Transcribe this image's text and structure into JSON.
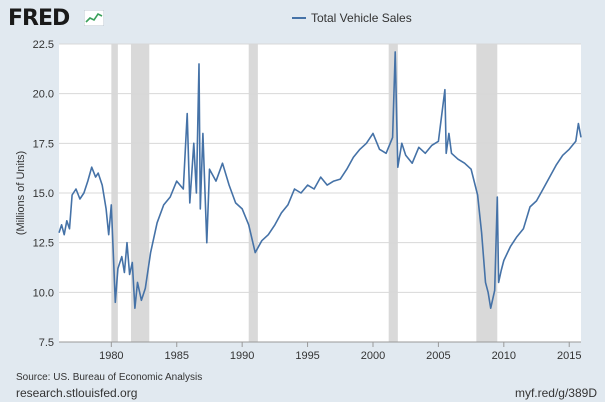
{
  "branding": {
    "logo_text": "FRED",
    "logo_icon": "chart-line-icon",
    "site": "research.stlouisfed.org",
    "short_url": "myf.red/g/389D",
    "source": "Source: US. Bureau of Economic Analysis"
  },
  "colors": {
    "line": "#4572a7",
    "recession": "#d9d9d9",
    "background": "#e1e9f0",
    "plot_bg": "#ffffff",
    "grid": "#d8d8d8"
  },
  "chart_data": {
    "type": "line",
    "title": "",
    "legend": [
      "Total Vehicle Sales"
    ],
    "legend_position": "top-center",
    "xlabel": "",
    "ylabel": "(Millions of Units)",
    "xlim": [
      1976.0,
      2015.9
    ],
    "ylim": [
      7.5,
      22.5
    ],
    "xticks": [
      1980,
      1985,
      1990,
      1995,
      2000,
      2005,
      2010,
      2015
    ],
    "yticks": [
      7.5,
      10.0,
      12.5,
      15.0,
      17.5,
      20.0,
      22.5
    ],
    "ytick_labels": [
      "7.5",
      "10.0",
      "12.5",
      "15.0",
      "17.5",
      "20.0",
      "22.5"
    ],
    "grid": "horizontal",
    "recessions": [
      [
        1980.0,
        1980.5
      ],
      [
        1981.5,
        1982.9
      ],
      [
        1990.5,
        1991.2
      ],
      [
        2001.2,
        2001.9
      ],
      [
        2007.9,
        2009.5
      ]
    ],
    "series": [
      {
        "name": "Total Vehicle Sales",
        "x": [
          1976.0,
          1976.2,
          1976.4,
          1976.6,
          1976.8,
          1977.0,
          1977.3,
          1977.6,
          1977.9,
          1978.2,
          1978.5,
          1978.8,
          1979.0,
          1979.3,
          1979.6,
          1979.8,
          1980.0,
          1980.3,
          1980.5,
          1980.8,
          1981.0,
          1981.2,
          1981.4,
          1981.6,
          1981.8,
          1982.0,
          1982.3,
          1982.6,
          1983.0,
          1983.5,
          1984.0,
          1984.5,
          1985.0,
          1985.5,
          1985.8,
          1986.0,
          1986.3,
          1986.5,
          1986.7,
          1986.8,
          1987.0,
          1987.3,
          1987.5,
          1988.0,
          1988.5,
          1989.0,
          1989.5,
          1990.0,
          1990.5,
          1991.0,
          1991.5,
          1992.0,
          1992.5,
          1993.0,
          1993.5,
          1994.0,
          1994.5,
          1995.0,
          1995.5,
          1996.0,
          1996.5,
          1997.0,
          1997.5,
          1998.0,
          1998.5,
          1999.0,
          1999.5,
          2000.0,
          2000.5,
          2001.0,
          2001.5,
          2001.7,
          2001.9,
          2002.2,
          2002.5,
          2003.0,
          2003.5,
          2004.0,
          2004.5,
          2005.0,
          2005.5,
          2005.6,
          2005.8,
          2006.0,
          2006.5,
          2007.0,
          2007.5,
          2008.0,
          2008.3,
          2008.6,
          2008.8,
          2009.0,
          2009.3,
          2009.5,
          2009.6,
          2009.8,
          2010.0,
          2010.5,
          2011.0,
          2011.5,
          2012.0,
          2012.5,
          2013.0,
          2013.5,
          2014.0,
          2014.5,
          2015.0,
          2015.5,
          2015.7,
          2015.9
        ],
        "values": [
          13.0,
          13.4,
          12.9,
          13.6,
          13.2,
          14.9,
          15.2,
          14.7,
          15.0,
          15.6,
          16.3,
          15.8,
          16.0,
          15.4,
          14.2,
          12.9,
          14.4,
          9.5,
          11.2,
          11.8,
          11.0,
          12.5,
          10.9,
          11.5,
          9.2,
          10.5,
          9.6,
          10.2,
          12.0,
          13.5,
          14.4,
          14.8,
          15.6,
          15.2,
          19.0,
          14.5,
          17.5,
          15.0,
          21.5,
          14.2,
          18.0,
          12.5,
          16.2,
          15.6,
          16.5,
          15.4,
          14.5,
          14.2,
          13.4,
          12.0,
          12.6,
          12.9,
          13.4,
          14.0,
          14.4,
          15.2,
          15.0,
          15.4,
          15.2,
          15.8,
          15.4,
          15.6,
          15.7,
          16.2,
          16.8,
          17.2,
          17.5,
          18.0,
          17.2,
          17.0,
          17.8,
          22.1,
          16.3,
          17.5,
          16.9,
          16.5,
          17.3,
          17.0,
          17.4,
          17.6,
          20.2,
          17.0,
          18.0,
          17.0,
          16.7,
          16.5,
          16.2,
          14.9,
          13.0,
          10.5,
          10.0,
          9.2,
          10.1,
          14.8,
          10.5,
          11.1,
          11.6,
          12.3,
          12.8,
          13.2,
          14.3,
          14.6,
          15.2,
          15.8,
          16.4,
          16.9,
          17.2,
          17.6,
          18.5,
          17.8
        ]
      }
    ]
  }
}
